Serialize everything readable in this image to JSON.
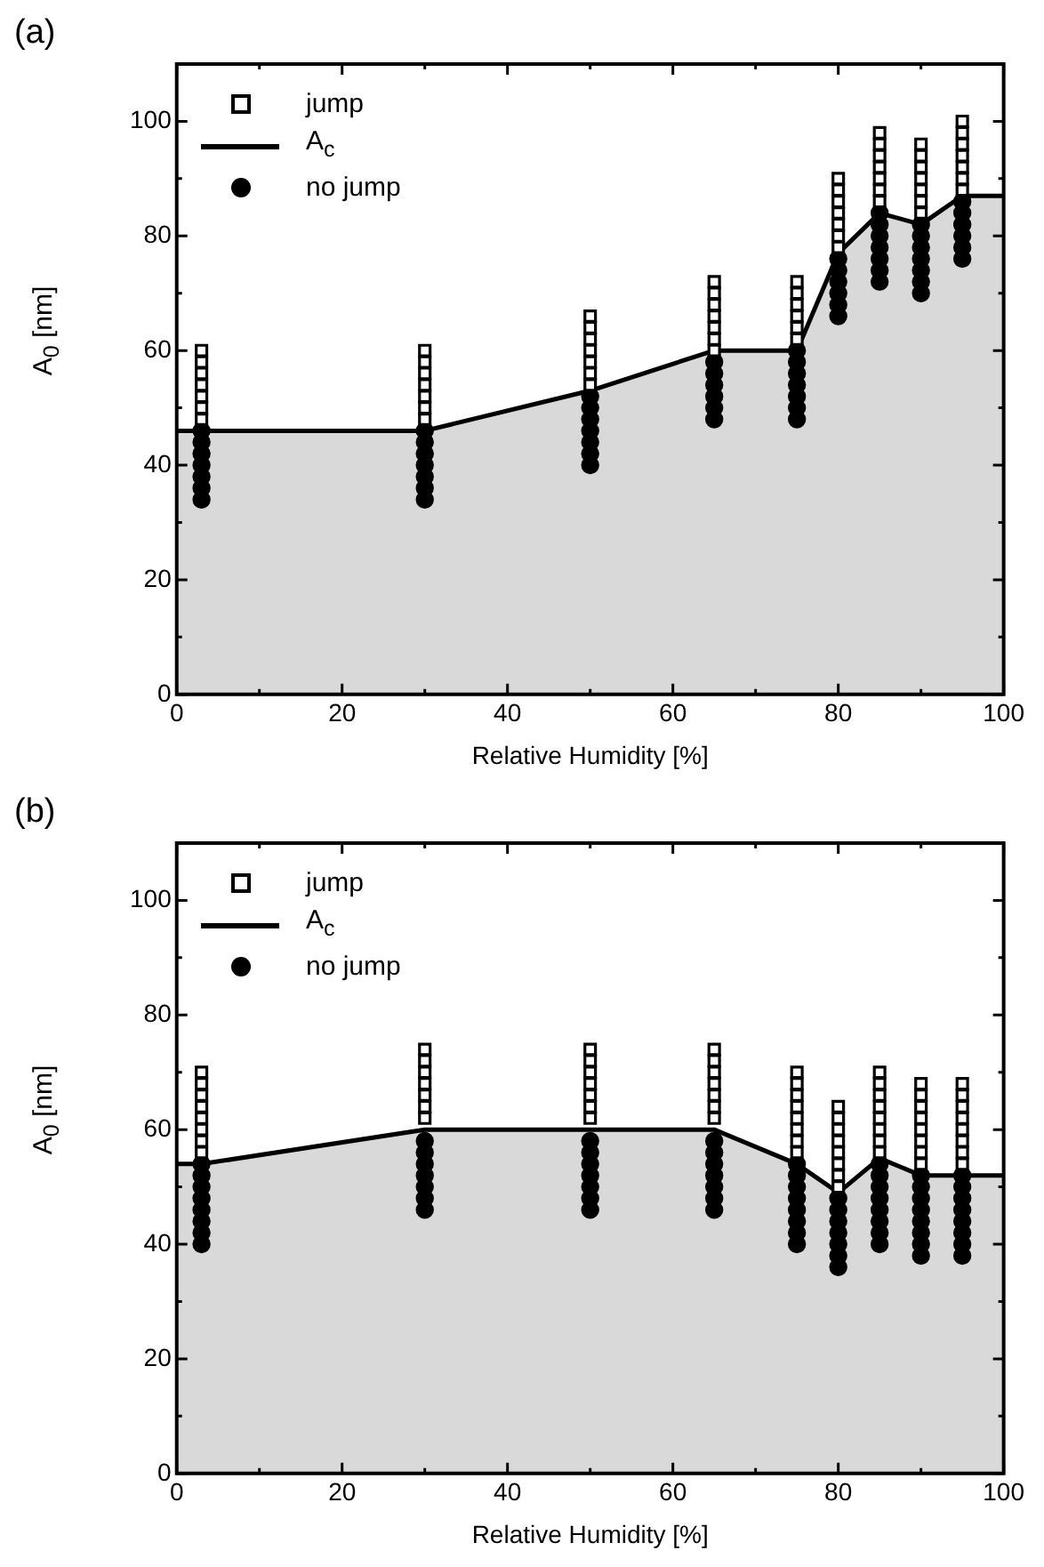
{
  "chart_data": [
    {
      "type": "scatter",
      "title": "(a)",
      "xlabel": "Relative Humidity [%]",
      "ylabel": "A$_{0}$ [nm]",
      "xlim": [
        0,
        100
      ],
      "ylim": [
        0,
        110
      ],
      "xticks": [
        0,
        20,
        40,
        60,
        80,
        100
      ],
      "yticks": [
        0,
        20,
        40,
        60,
        80,
        100
      ],
      "grid": false,
      "legend": "top left",
      "series": [
        {
          "name": "jump",
          "type": "scatter",
          "marker": "square",
          "color": "#000000",
          "x": [
            3,
            3,
            3,
            3,
            3,
            3,
            3,
            30,
            30,
            30,
            30,
            30,
            30,
            30,
            50,
            50,
            50,
            50,
            50,
            50,
            50,
            65,
            65,
            65,
            65,
            65,
            65,
            65,
            75,
            75,
            75,
            75,
            75,
            75,
            80,
            80,
            80,
            80,
            80,
            80,
            80,
            85,
            85,
            85,
            85,
            85,
            85,
            85,
            90,
            90,
            90,
            90,
            90,
            90,
            90,
            95,
            95,
            95,
            95,
            95,
            95,
            95
          ],
          "values": [
            48,
            50,
            52,
            54,
            56,
            58,
            60,
            48,
            50,
            52,
            54,
            56,
            58,
            60,
            54,
            56,
            58,
            60,
            62,
            64,
            66,
            60,
            62,
            64,
            66,
            68,
            70,
            72,
            62,
            64,
            66,
            68,
            70,
            72,
            78,
            80,
            82,
            84,
            86,
            88,
            90,
            86,
            88,
            90,
            92,
            94,
            96,
            98,
            84,
            86,
            88,
            90,
            92,
            94,
            96,
            88,
            90,
            92,
            94,
            96,
            98,
            100
          ]
        },
        {
          "name": "A$_{c}$",
          "type": "area",
          "color": "#d9d9d9",
          "x": [
            0,
            3,
            30,
            50,
            65,
            75,
            80,
            85,
            90,
            95,
            100
          ],
          "values": [
            46,
            46,
            46,
            53,
            60,
            60,
            77,
            84,
            82,
            87,
            87
          ]
        },
        {
          "name": "no jump",
          "type": "scatter",
          "marker": "circle",
          "color": "#000000",
          "x": [
            3,
            3,
            3,
            3,
            3,
            3,
            3,
            30,
            30,
            30,
            30,
            30,
            30,
            30,
            50,
            50,
            50,
            50,
            50,
            50,
            50,
            65,
            65,
            65,
            65,
            65,
            65,
            75,
            75,
            75,
            75,
            75,
            75,
            75,
            80,
            80,
            80,
            80,
            80,
            80,
            85,
            85,
            85,
            85,
            85,
            85,
            85,
            90,
            90,
            90,
            90,
            90,
            90,
            90,
            95,
            95,
            95,
            95,
            95,
            95
          ],
          "values": [
            34,
            36,
            38,
            40,
            42,
            44,
            46,
            34,
            36,
            38,
            40,
            42,
            44,
            46,
            40,
            42,
            44,
            46,
            48,
            50,
            52,
            48,
            50,
            52,
            54,
            56,
            58,
            48,
            50,
            52,
            54,
            56,
            58,
            60,
            66,
            68,
            70,
            72,
            74,
            76,
            72,
            74,
            76,
            78,
            80,
            82,
            84,
            70,
            72,
            74,
            76,
            78,
            80,
            82,
            76,
            78,
            80,
            82,
            84,
            86
          ]
        }
      ]
    },
    {
      "type": "scatter",
      "title": "(b)",
      "xlabel": "Relative Humidity [%]",
      "ylabel": "A$_{0}$ [nm]",
      "xlim": [
        0,
        100
      ],
      "ylim": [
        0,
        110
      ],
      "xticks": [
        0,
        20,
        40,
        60,
        80,
        100
      ],
      "yticks": [
        0,
        20,
        40,
        60,
        80,
        100
      ],
      "grid": false,
      "legend": "top left",
      "series": [
        {
          "name": "jump",
          "type": "scatter",
          "marker": "square",
          "color": "#000000",
          "x": [
            3,
            3,
            3,
            3,
            3,
            3,
            3,
            3,
            30,
            30,
            30,
            30,
            30,
            30,
            30,
            50,
            50,
            50,
            50,
            50,
            50,
            50,
            65,
            65,
            65,
            65,
            65,
            65,
            65,
            75,
            75,
            75,
            75,
            75,
            75,
            75,
            75,
            80,
            80,
            80,
            80,
            80,
            80,
            80,
            80,
            85,
            85,
            85,
            85,
            85,
            85,
            85,
            85,
            90,
            90,
            90,
            90,
            90,
            90,
            90,
            90,
            95,
            95,
            95,
            95,
            95,
            95,
            95,
            95
          ],
          "values": [
            56,
            58,
            60,
            62,
            64,
            66,
            68,
            70,
            62,
            64,
            66,
            68,
            70,
            72,
            74,
            62,
            64,
            66,
            68,
            70,
            72,
            74,
            62,
            64,
            66,
            68,
            70,
            72,
            74,
            56,
            58,
            60,
            62,
            64,
            66,
            68,
            70,
            50,
            52,
            54,
            56,
            58,
            60,
            62,
            64,
            56,
            58,
            60,
            62,
            64,
            66,
            68,
            70,
            54,
            56,
            58,
            60,
            62,
            64,
            66,
            68,
            54,
            56,
            58,
            60,
            62,
            64,
            66,
            68
          ]
        },
        {
          "name": "A$_{c}$",
          "type": "area",
          "color": "#d9d9d9",
          "x": [
            0,
            3,
            30,
            50,
            65,
            75,
            80,
            85,
            90,
            95,
            100
          ],
          "values": [
            54,
            54,
            60,
            60,
            60,
            54,
            49,
            55,
            52,
            52,
            52
          ]
        },
        {
          "name": "no jump",
          "type": "scatter",
          "marker": "circle",
          "color": "#000000",
          "x": [
            3,
            3,
            3,
            3,
            3,
            3,
            3,
            3,
            30,
            30,
            30,
            30,
            30,
            30,
            30,
            50,
            50,
            50,
            50,
            50,
            50,
            50,
            65,
            65,
            65,
            65,
            65,
            65,
            65,
            75,
            75,
            75,
            75,
            75,
            75,
            75,
            75,
            80,
            80,
            80,
            80,
            80,
            80,
            80,
            85,
            85,
            85,
            85,
            85,
            85,
            85,
            85,
            90,
            90,
            90,
            90,
            90,
            90,
            90,
            90,
            95,
            95,
            95,
            95,
            95,
            95,
            95,
            95
          ],
          "values": [
            40,
            42,
            44,
            46,
            48,
            50,
            52,
            54,
            46,
            48,
            50,
            52,
            54,
            56,
            58,
            46,
            48,
            50,
            52,
            54,
            56,
            58,
            46,
            48,
            50,
            52,
            54,
            56,
            58,
            40,
            42,
            44,
            46,
            48,
            50,
            52,
            54,
            36,
            38,
            40,
            42,
            44,
            46,
            48,
            40,
            42,
            44,
            46,
            48,
            50,
            52,
            54,
            38,
            40,
            42,
            44,
            46,
            48,
            50,
            52,
            38,
            40,
            42,
            44,
            46,
            48,
            50,
            52
          ]
        }
      ]
    }
  ]
}
